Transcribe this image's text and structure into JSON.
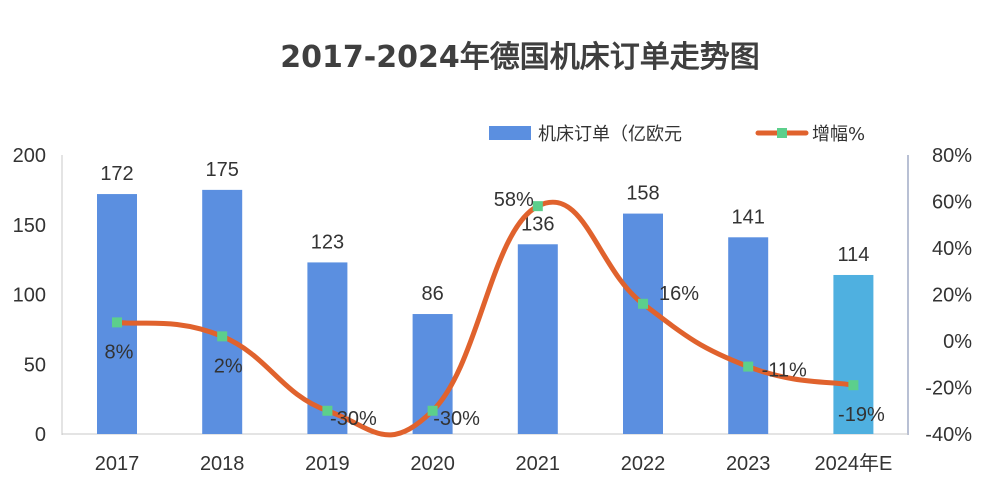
{
  "chart_data": {
    "type": "bar+line",
    "title": "2017-2024年德国机床订单走势图",
    "categories": [
      "2017",
      "2018",
      "2019",
      "2020",
      "2021",
      "2022",
      "2023",
      "2024年E"
    ],
    "series": [
      {
        "name": "机床订单（亿欧元",
        "type": "bar",
        "axis": "left",
        "values": [
          172,
          175,
          123,
          86,
          136,
          158,
          141,
          114
        ],
        "labels": [
          "172",
          "175",
          "123",
          "86",
          "136",
          "158",
          "141",
          "114"
        ],
        "color": "#5b8fe0",
        "last_color": "#4fb0e0"
      },
      {
        "name": "增幅%",
        "type": "line",
        "axis": "right",
        "values": [
          8,
          2,
          -30,
          -30,
          58,
          16,
          -11,
          -19
        ],
        "labels": [
          "8%",
          "2%",
          "-30%",
          "-30%",
          "58%",
          "16%",
          "-11%",
          "-19%"
        ],
        "color": "#e0622d",
        "marker_color": "#5ccf8c"
      }
    ],
    "y_left": {
      "min": 0,
      "max": 200,
      "ticks": [
        "0",
        "50",
        "100",
        "150",
        "200"
      ]
    },
    "y_right": {
      "min": -40,
      "max": 80,
      "ticks": [
        "-40%",
        "-20%",
        "0%",
        "20%",
        "40%",
        "60%",
        "80%"
      ]
    },
    "legend": "top-right",
    "grid": false
  }
}
